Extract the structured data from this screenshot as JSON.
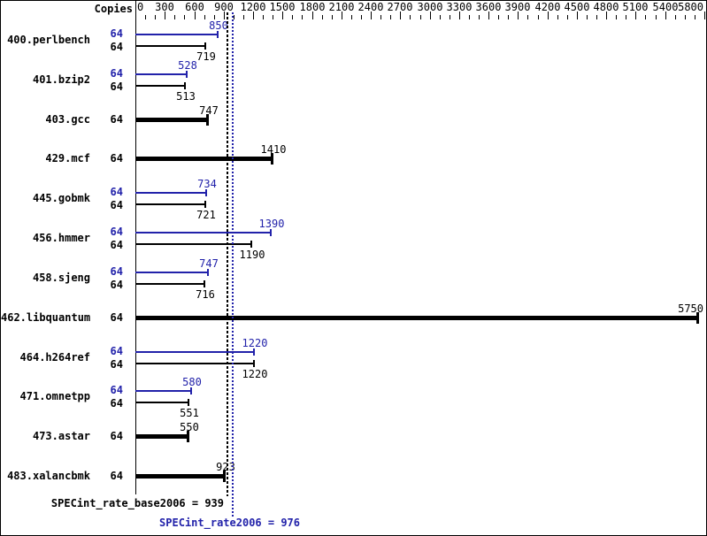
{
  "chart_data": {
    "type": "bar",
    "orientation": "horizontal",
    "title": "",
    "copies_header": "Copies",
    "axis": {
      "min": 0,
      "max": 5800,
      "major_step": 300,
      "minor_step": 100,
      "last_labeled_major": 5400,
      "end_label": "5800",
      "tick_labels": [
        "0",
        "300",
        "600",
        "900",
        "1200",
        "1500",
        "1800",
        "2100",
        "2400",
        "2700",
        "3000",
        "3300",
        "3600",
        "3900",
        "4200",
        "4500",
        "4800",
        "5100",
        "5400",
        "5800"
      ]
    },
    "colors": {
      "peak": "#2222aa",
      "base": "#000000",
      "background": "#ffffff"
    },
    "series_names": {
      "peak": "SPECint_rate2006",
      "base": "SPECint_rate_base2006"
    },
    "benchmarks": [
      {
        "name": "400.perlbench",
        "copies": 64,
        "peak": 850,
        "base": 719
      },
      {
        "name": "401.bzip2",
        "copies": 64,
        "peak": 528,
        "base": 513
      },
      {
        "name": "403.gcc",
        "copies": 64,
        "peak": null,
        "base": 747
      },
      {
        "name": "429.mcf",
        "copies": 64,
        "peak": null,
        "base": 1410
      },
      {
        "name": "445.gobmk",
        "copies": 64,
        "peak": 734,
        "base": 721
      },
      {
        "name": "456.hmmer",
        "copies": 64,
        "peak": 1390,
        "base": 1190
      },
      {
        "name": "458.sjeng",
        "copies": 64,
        "peak": 747,
        "base": 716
      },
      {
        "name": "462.libquantum",
        "copies": 64,
        "peak": null,
        "base": 5750
      },
      {
        "name": "464.h264ref",
        "copies": 64,
        "peak": 1220,
        "base": 1220
      },
      {
        "name": "471.omnetpp",
        "copies": 64,
        "peak": 580,
        "base": 551
      },
      {
        "name": "473.astar",
        "copies": 64,
        "peak": null,
        "base": 550
      },
      {
        "name": "483.xalancbmk",
        "copies": 64,
        "peak": null,
        "base": 923
      }
    ],
    "summary": {
      "base": {
        "label": "SPECint_rate_base2006",
        "value": 939,
        "separator": " = "
      },
      "peak": {
        "label": "SPECint_rate2006",
        "value": 976,
        "separator": " = "
      }
    }
  }
}
